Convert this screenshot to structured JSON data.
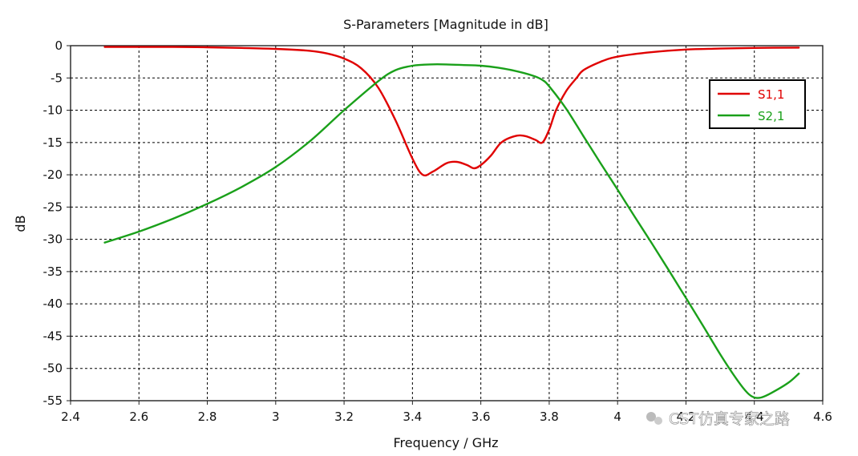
{
  "chart_data": {
    "type": "line",
    "title": "S-Parameters [Magnitude in dB]",
    "xlabel": "Frequency / GHz",
    "ylabel": "dB",
    "xlim": [
      2.4,
      4.6
    ],
    "ylim": [
      -55,
      0
    ],
    "xticks": [
      "2.4",
      "2.6",
      "2.8",
      "3",
      "3.2",
      "3.4",
      "3.6",
      "3.8",
      "4",
      "4.2",
      "4.4",
      "4.6"
    ],
    "yticks": [
      "0",
      "-5",
      "-10",
      "-15",
      "-20",
      "-25",
      "-30",
      "-35",
      "-40",
      "-45",
      "-50",
      "-55"
    ],
    "grid": true,
    "legend_position": "top-right",
    "series": [
      {
        "name": "S1,1",
        "color": "#e00000",
        "x": [
          2.5,
          2.7,
          2.8,
          2.9,
          3.0,
          3.1,
          3.15,
          3.2,
          3.25,
          3.3,
          3.35,
          3.4,
          3.43,
          3.46,
          3.5,
          3.53,
          3.56,
          3.58,
          3.6,
          3.63,
          3.66,
          3.7,
          3.73,
          3.76,
          3.78,
          3.8,
          3.82,
          3.85,
          3.88,
          3.9,
          3.95,
          4.0,
          4.1,
          4.2,
          4.3,
          4.4,
          4.53
        ],
        "y": [
          -0.2,
          -0.2,
          -0.25,
          -0.35,
          -0.5,
          -0.8,
          -1.2,
          -2.0,
          -3.5,
          -6.5,
          -11.5,
          -17.5,
          -20.0,
          -19.5,
          -18.2,
          -18.0,
          -18.5,
          -19.0,
          -18.5,
          -17.0,
          -15.0,
          -14.0,
          -14.0,
          -14.6,
          -15.0,
          -13.0,
          -10.0,
          -7.0,
          -5.0,
          -3.8,
          -2.5,
          -1.7,
          -1.0,
          -0.6,
          -0.45,
          -0.35,
          -0.3
        ]
      },
      {
        "name": "S2,1",
        "color": "#1aa01a",
        "x": [
          2.5,
          2.6,
          2.7,
          2.8,
          2.9,
          3.0,
          3.1,
          3.2,
          3.3,
          3.35,
          3.4,
          3.45,
          3.5,
          3.55,
          3.6,
          3.65,
          3.7,
          3.75,
          3.78,
          3.8,
          3.85,
          3.9,
          3.95,
          4.0,
          4.05,
          4.1,
          4.15,
          4.2,
          4.25,
          4.3,
          4.35,
          4.38,
          4.4,
          4.42,
          4.45,
          4.5,
          4.53
        ],
        "y": [
          -30.5,
          -28.8,
          -26.8,
          -24.5,
          -21.9,
          -18.8,
          -14.8,
          -10.0,
          -5.5,
          -3.8,
          -3.1,
          -2.9,
          -2.9,
          -3.0,
          -3.1,
          -3.4,
          -3.9,
          -4.6,
          -5.3,
          -6.3,
          -9.8,
          -14.0,
          -18.2,
          -22.3,
          -26.5,
          -30.6,
          -34.8,
          -39.1,
          -43.4,
          -47.8,
          -51.8,
          -53.8,
          -54.5,
          -54.5,
          -53.8,
          -52.2,
          -50.8
        ]
      }
    ]
  },
  "watermark": "CST仿真专家之路"
}
